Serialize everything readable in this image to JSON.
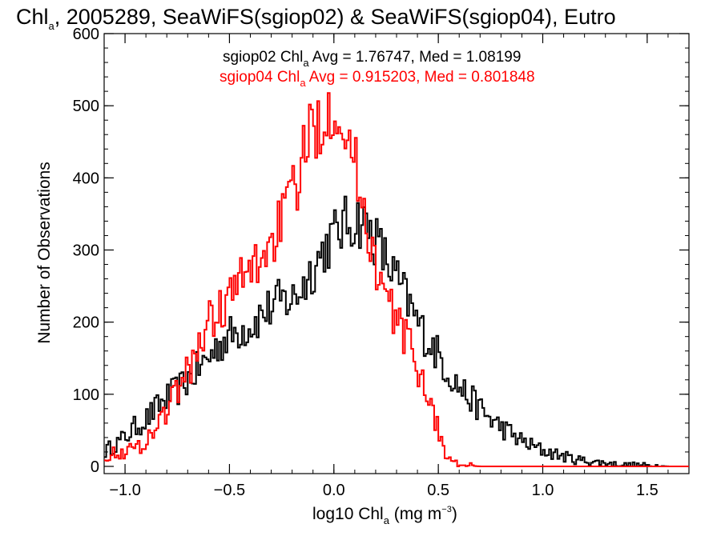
{
  "chart_data": {
    "type": "line",
    "title": {
      "prefix": "Chl",
      "sub": "a",
      "rest": ", 2005289, SeaWiFS(sgiop02) & SeaWiFS(sgiop04), Eutro"
    },
    "xlabel": {
      "prefix": "log10 Chl",
      "sub": "a",
      "mid": " (mg m",
      "sup": "−3",
      "suffix": ")"
    },
    "ylabel": "Number of Observations",
    "xlim": [
      -1.1,
      1.7
    ],
    "ylim": [
      -10,
      600
    ],
    "x_ticks": [
      -1.0,
      -0.5,
      0.0,
      0.5,
      1.0,
      1.5
    ],
    "x_tick_labels": [
      "−1.0",
      "−0.5",
      "0.0",
      "0.5",
      "1.0",
      "1.5"
    ],
    "y_ticks": [
      0,
      100,
      200,
      300,
      400,
      500,
      600
    ],
    "y_tick_labels": [
      "0",
      "100",
      "200",
      "300",
      "400",
      "500",
      "600"
    ],
    "grid": false,
    "step": true,
    "legend_placement": "top-center",
    "series": [
      {
        "name": "sgiop02",
        "color": "#000000",
        "legend": {
          "prefix": "sgiop02 Chl",
          "sub": "a",
          "rest": " Avg = 1.76747, Med = 1.08199"
        },
        "x": [
          -1.1,
          -1.05,
          -1.0,
          -0.95,
          -0.9,
          -0.85,
          -0.8,
          -0.75,
          -0.7,
          -0.65,
          -0.6,
          -0.55,
          -0.5,
          -0.45,
          -0.4,
          -0.35,
          -0.3,
          -0.25,
          -0.2,
          -0.15,
          -0.1,
          -0.05,
          0.0,
          0.05,
          0.1,
          0.12,
          0.15,
          0.2,
          0.25,
          0.3,
          0.35,
          0.4,
          0.45,
          0.5,
          0.55,
          0.6,
          0.65,
          0.7,
          0.75,
          0.8,
          0.85,
          0.9,
          0.95,
          1.0,
          1.05,
          1.1,
          1.15,
          1.2,
          1.25,
          1.3,
          1.35,
          1.4,
          1.45,
          1.5,
          1.55,
          1.6,
          1.65,
          1.7
        ],
        "values": [
          20,
          30,
          40,
          55,
          65,
          80,
          95,
          105,
          120,
          135,
          150,
          170,
          180,
          190,
          195,
          210,
          220,
          230,
          230,
          250,
          275,
          300,
          320,
          335,
          340,
          342,
          335,
          315,
          285,
          260,
          230,
          200,
          175,
          155,
          130,
          110,
          95,
          80,
          65,
          55,
          45,
          35,
          28,
          22,
          18,
          14,
          10,
          8,
          6,
          5,
          3,
          2,
          2,
          1,
          1,
          0,
          0,
          0
        ]
      },
      {
        "name": "sgiop04",
        "color": "#ff0000",
        "legend": {
          "prefix": "sgiop04 Chl",
          "sub": "a",
          "rest": " Avg = 0.915203, Med = 0.801848"
        },
        "x": [
          -1.1,
          -1.05,
          -1.0,
          -0.95,
          -0.9,
          -0.85,
          -0.8,
          -0.75,
          -0.7,
          -0.65,
          -0.6,
          -0.55,
          -0.5,
          -0.45,
          -0.4,
          -0.35,
          -0.3,
          -0.25,
          -0.2,
          -0.15,
          -0.1,
          -0.05,
          0.0,
          0.02,
          0.05,
          0.1,
          0.15,
          0.2,
          0.25,
          0.3,
          0.35,
          0.4,
          0.45,
          0.5,
          0.52,
          0.55,
          0.6,
          0.65,
          0.7,
          0.8,
          0.9,
          1.0,
          1.2,
          1.4,
          1.7
        ],
        "values": [
          15,
          18,
          20,
          25,
          35,
          55,
          80,
          105,
          130,
          165,
          200,
          215,
          235,
          255,
          270,
          290,
          310,
          345,
          370,
          425,
          470,
          485,
          505,
          500,
          470,
          420,
          350,
          280,
          230,
          205,
          175,
          140,
          100,
          50,
          30,
          10,
          2,
          1,
          0,
          0,
          0,
          0,
          0,
          0,
          0
        ]
      }
    ]
  }
}
